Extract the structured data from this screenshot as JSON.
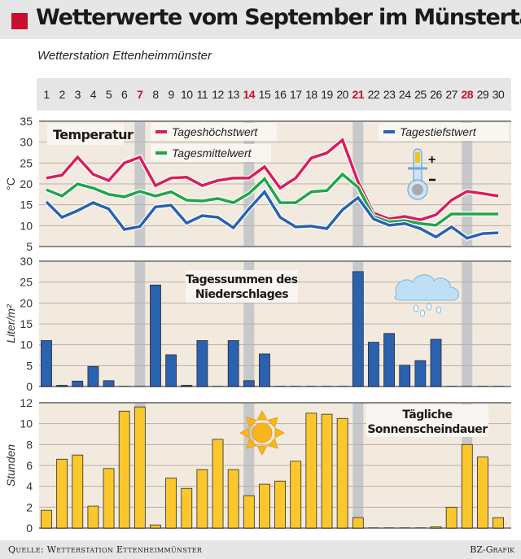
{
  "header": {
    "title": "Wetterwerte vom September im Münstertal",
    "accent_color": "#c8102e"
  },
  "subtitle": "Wetterstation Ettenheimmünster",
  "days": [
    1,
    2,
    3,
    4,
    5,
    6,
    7,
    8,
    9,
    10,
    11,
    12,
    13,
    14,
    15,
    16,
    17,
    18,
    19,
    20,
    21,
    22,
    23,
    24,
    25,
    26,
    27,
    28,
    29,
    30
  ],
  "highlight_days": [
    7,
    14,
    21,
    28
  ],
  "footer": {
    "source": "Quelle: Wetterstation Ettenheimmünster",
    "credit": "BZ-Grafik"
  },
  "chart_data": [
    {
      "type": "line",
      "title": "Temperatur",
      "xlabel": "",
      "ylabel": "°C",
      "ylim": [
        5,
        35
      ],
      "yticks": [
        5,
        10,
        15,
        20,
        25,
        30,
        35
      ],
      "grid": true,
      "legend": "top",
      "icon": "thermometer-icon",
      "x": [
        1,
        2,
        3,
        4,
        5,
        6,
        7,
        8,
        9,
        10,
        11,
        12,
        13,
        14,
        15,
        16,
        17,
        18,
        19,
        20,
        21,
        22,
        23,
        24,
        25,
        26,
        27,
        28,
        29,
        30
      ],
      "series": [
        {
          "name": "Tageshöchstwert",
          "color": "#d81e5b",
          "values": [
            21.4,
            22.1,
            26.4,
            22.3,
            20.8,
            25.0,
            26.4,
            19.6,
            21.4,
            21.6,
            19.6,
            20.8,
            21.4,
            21.4,
            24.1,
            19.0,
            21.4,
            26.2,
            27.4,
            30.5,
            20.5,
            13.0,
            11.6,
            12.2,
            11.4,
            12.6,
            16.1,
            18.2,
            17.7,
            17.1
          ]
        },
        {
          "name": "Tagesmittelwert",
          "color": "#1fa64a",
          "values": [
            18.6,
            17.1,
            20.0,
            19.0,
            17.5,
            16.9,
            18.2,
            17.1,
            18.1,
            16.1,
            15.9,
            16.5,
            15.5,
            17.7,
            21.2,
            15.5,
            15.5,
            18.1,
            18.4,
            22.3,
            19.2,
            12.2,
            10.9,
            11.2,
            10.5,
            10.1,
            12.8,
            12.8,
            12.8,
            12.8
          ]
        },
        {
          "name": "Tagestiefstwert",
          "color": "#2a62b0",
          "values": [
            15.7,
            12.0,
            13.6,
            15.5,
            14.0,
            9.1,
            9.8,
            14.5,
            14.9,
            10.6,
            12.4,
            12.0,
            9.5,
            14.0,
            18.1,
            12.0,
            9.7,
            9.9,
            9.3,
            13.8,
            16.7,
            11.6,
            10.1,
            10.5,
            9.3,
            7.3,
            9.7,
            7.0,
            8.1,
            8.3
          ]
        }
      ]
    },
    {
      "type": "bar",
      "title": "Tagessummen des Niederschlages",
      "title_lines": [
        "Tagessummen des",
        "Niederschlages"
      ],
      "xlabel": "",
      "ylabel": "Liter/m²",
      "ylim": [
        0,
        30
      ],
      "yticks": [
        0,
        5,
        10,
        15,
        20,
        25,
        30
      ],
      "grid": true,
      "icon": "rain-cloud-icon",
      "color": "#2a62b0",
      "categories": [
        1,
        2,
        3,
        4,
        5,
        6,
        7,
        8,
        9,
        10,
        11,
        12,
        13,
        14,
        15,
        16,
        17,
        18,
        19,
        20,
        21,
        22,
        23,
        24,
        25,
        26,
        27,
        28,
        29,
        30
      ],
      "values": [
        11.0,
        0.2,
        1.3,
        4.8,
        1.4,
        0,
        0,
        24.3,
        7.6,
        0.3,
        11.0,
        0,
        11.0,
        1.4,
        7.8,
        0,
        0,
        0,
        0,
        0,
        27.5,
        10.6,
        12.7,
        5.1,
        6.2,
        11.3,
        0,
        0,
        0,
        0
      ]
    },
    {
      "type": "bar",
      "title": "Tägliche Sonnenscheindauer",
      "title_lines": [
        "Tägliche",
        "Sonnenscheindauer"
      ],
      "xlabel": "",
      "ylabel": "Stunden",
      "ylim": [
        0,
        12
      ],
      "yticks": [
        0,
        2,
        4,
        6,
        8,
        10,
        12
      ],
      "grid": true,
      "icon": "sun-icon",
      "color": "#fcc72c",
      "categories": [
        1,
        2,
        3,
        4,
        5,
        6,
        7,
        8,
        9,
        10,
        11,
        12,
        13,
        14,
        15,
        16,
        17,
        18,
        19,
        20,
        21,
        22,
        23,
        24,
        25,
        26,
        27,
        28,
        29,
        30
      ],
      "values": [
        1.7,
        6.6,
        7.0,
        2.1,
        5.7,
        11.2,
        11.6,
        0.3,
        4.8,
        3.8,
        5.6,
        8.5,
        5.6,
        3.1,
        4.2,
        4.5,
        6.4,
        11.0,
        10.9,
        10.5,
        1.0,
        0,
        0,
        0,
        0,
        0.1,
        2.0,
        8.0,
        6.8,
        1.0
      ]
    }
  ]
}
